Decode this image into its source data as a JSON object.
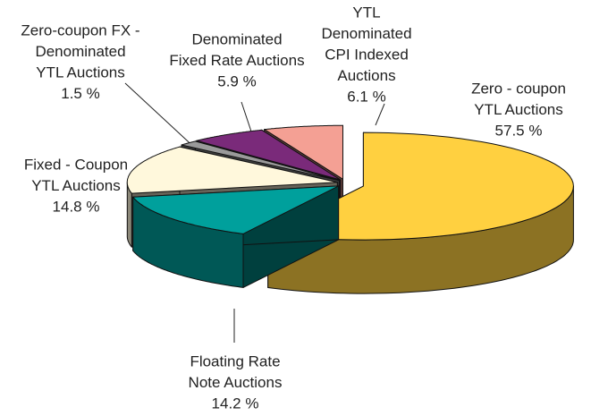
{
  "chart_data": {
    "type": "pie3d",
    "categories": [
      [
        "Zero - coupon",
        "YTL Auctions"
      ],
      [
        "Floating Rate",
        "Note Auctions"
      ],
      [
        "Fixed - Coupon",
        "YTL Auctions"
      ],
      [
        "Zero-coupon FX -",
        "Denominated",
        "YTL Auctions"
      ],
      [
        "Denominated",
        "Fixed Rate Auctions"
      ],
      [
        "YTL",
        "Denominated",
        "CPI Indexed",
        "Auctions"
      ]
    ],
    "values": [
      57.5,
      14.2,
      14.8,
      1.5,
      5.9,
      6.1
    ],
    "value_labels": [
      "57.5 %",
      "14.2 %",
      "14.8 %",
      "1.5 %",
      "5.9 %",
      "6.1 %"
    ],
    "colors": [
      "#ffd040",
      "#00a09c",
      "#fff8dc",
      "#9a9a9a",
      "#7a2a7a",
      "#f4a094"
    ]
  }
}
